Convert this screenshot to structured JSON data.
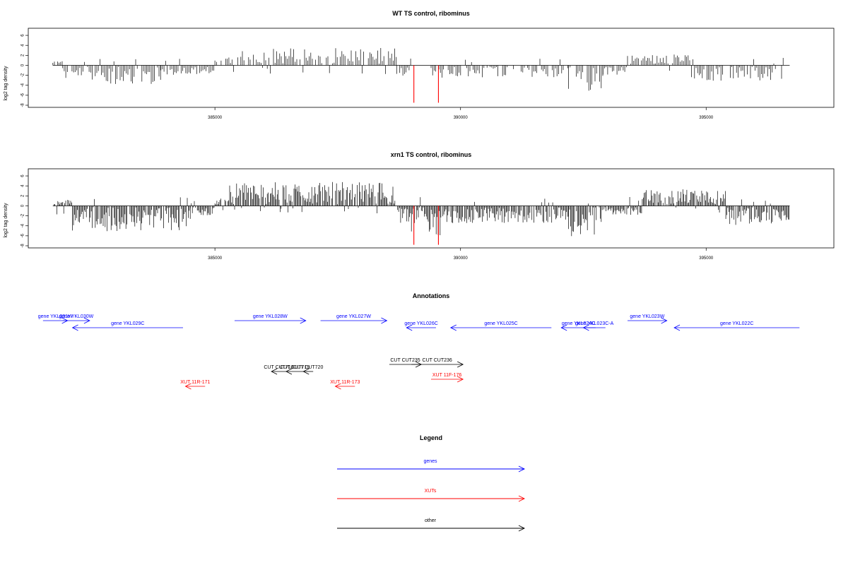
{
  "chart_data": [
    {
      "type": "bar",
      "title": "WT TS control, ribominus",
      "ylabel": "log2 tag density",
      "xlabel": "",
      "xlim": [
        381200,
        397600
      ],
      "ylim": [
        -8,
        7
      ],
      "xticks": [
        385000,
        390000,
        395000
      ],
      "xtick_labels": [
        "385000",
        "390000",
        "395000"
      ],
      "yticks": [
        -8,
        -6,
        -4,
        -2,
        0,
        2,
        4,
        6
      ],
      "ytick_labels": [
        "-8",
        "-6",
        "-4",
        "-2",
        "0",
        "2",
        "4",
        "6"
      ],
      "baseline_x": [
        381700,
        396700
      ],
      "grid": false,
      "segments": [
        {
          "x": [
            381700,
            381900
          ],
          "base": 0.4
        },
        {
          "x": [
            381900,
            382500
          ],
          "base": -1.5
        },
        {
          "x": [
            382500,
            383900
          ],
          "base": -2.6
        },
        {
          "x": [
            383900,
            385000
          ],
          "base": -1.0
        },
        {
          "x": [
            385000,
            385400
          ],
          "base": 0.8
        },
        {
          "x": [
            385400,
            388700
          ],
          "base": 2.0
        },
        {
          "x": [
            388700,
            389000
          ],
          "base": -1.2
        },
        {
          "x": [
            389400,
            392200
          ],
          "base": -1.4
        },
        {
          "x": [
            392200,
            392900
          ],
          "base": -3.0
        },
        {
          "x": [
            392900,
            393400
          ],
          "base": -1.0
        },
        {
          "x": [
            393400,
            394700
          ],
          "base": 1.2
        },
        {
          "x": [
            394700,
            396600
          ],
          "base": -1.8
        }
      ],
      "highlights": [
        {
          "x": 389050,
          "value": -7.5,
          "color": "#ff0000"
        },
        {
          "x": 389550,
          "value": -7.5,
          "color": "#ff0000"
        }
      ],
      "bar_color": "#000000"
    },
    {
      "type": "bar",
      "title": "xrn1 TS control, ribominus",
      "ylabel": "log2 tag density",
      "xlabel": "",
      "xlim": [
        381200,
        397600
      ],
      "ylim": [
        -8,
        7
      ],
      "xticks": [
        385000,
        390000,
        395000
      ],
      "xtick_labels": [
        "385000",
        "390000",
        "395000"
      ],
      "yticks": [
        -8,
        -6,
        -4,
        -2,
        0,
        2,
        4,
        6
      ],
      "ytick_labels": [
        "-8",
        "-6",
        "-4",
        "-2",
        "0",
        "2",
        "4",
        "6"
      ],
      "baseline_x": [
        381700,
        396700
      ],
      "grid": false,
      "segments": [
        {
          "x": [
            381700,
            382100
          ],
          "base": 0.6
        },
        {
          "x": [
            382100,
            384500
          ],
          "base": -3.0
        },
        {
          "x": [
            384500,
            385000
          ],
          "base": -1.0
        },
        {
          "x": [
            385000,
            385300
          ],
          "base": 0.8
        },
        {
          "x": [
            385300,
            388700
          ],
          "base": 2.8
        },
        {
          "x": [
            388700,
            389000
          ],
          "base": -2.0
        },
        {
          "x": [
            389000,
            389600
          ],
          "base": -3.5
        },
        {
          "x": [
            389600,
            392200
          ],
          "base": -2.0
        },
        {
          "x": [
            392200,
            392900
          ],
          "base": -3.6
        },
        {
          "x": [
            392900,
            393700
          ],
          "base": -1.0
        },
        {
          "x": [
            393700,
            395400
          ],
          "base": 1.9
        },
        {
          "x": [
            395400,
            396700
          ],
          "base": -2.2
        }
      ],
      "highlights": [
        {
          "x": 389050,
          "value": -7.8,
          "color": "#ff0000"
        },
        {
          "x": 389550,
          "value": -7.8,
          "color": "#ff0000"
        }
      ],
      "bar_color": "#000000"
    }
  ],
  "annotations": {
    "title": "Annotations",
    "colors": {
      "genes": "#0000ff",
      "xuts": "#ff0000",
      "other": "#000000"
    },
    "items": [
      {
        "label": "gene YKL031W",
        "start": 381500,
        "end": 382000,
        "row": 0,
        "kind": "genes"
      },
      {
        "label": "gene YKL030W",
        "start": 381900,
        "end": 382450,
        "row": 0,
        "kind": "genes"
      },
      {
        "label": "gene YKL029C",
        "start": 382100,
        "end": 384350,
        "row": 1,
        "kind": "genes"
      },
      {
        "label": "gene YKL028W",
        "start": 385400,
        "end": 386850,
        "row": 0,
        "kind": "genes"
      },
      {
        "label": "gene YKL027W",
        "start": 387150,
        "end": 388500,
        "row": 0,
        "kind": "genes"
      },
      {
        "label": "gene YKL026C",
        "start": 388900,
        "end": 389500,
        "row": 1,
        "kind": "genes"
      },
      {
        "label": "gene YKL025C",
        "start": 389800,
        "end": 391850,
        "row": 1,
        "kind": "genes"
      },
      {
        "label": "gene YKL024C",
        "start": 392050,
        "end": 392750,
        "row": 1,
        "kind": "genes"
      },
      {
        "label": "gene YKL023C-A",
        "start": 392500,
        "end": 392950,
        "row": 1,
        "kind": "genes"
      },
      {
        "label": "gene YKL023W",
        "start": 393400,
        "end": 394200,
        "row": 0,
        "kind": "genes"
      },
      {
        "label": "gene YKL022C",
        "start": 394350,
        "end": 396900,
        "row": 1,
        "kind": "genes"
      },
      {
        "label": "CUT CUT718",
        "start": 386150,
        "end": 386450,
        "row": 3,
        "kind": "other"
      },
      {
        "label": "CUT CUT719",
        "start": 386450,
        "end": 386800,
        "row": 3,
        "kind": "other"
      },
      {
        "label": "CUT CUT720",
        "start": 386800,
        "end": 387000,
        "row": 3,
        "kind": "other"
      },
      {
        "label": "CUT CUT235",
        "start": 388550,
        "end": 389200,
        "row": 2,
        "kind": "other"
      },
      {
        "label": "CUT CUT236",
        "start": 389000,
        "end": 390050,
        "row": 2,
        "kind": "other"
      },
      {
        "label": "XUT 11R-171",
        "start": 384400,
        "end": 384800,
        "row": 4,
        "kind": "xuts"
      },
      {
        "label": "XUT 11R-173",
        "start": 387450,
        "end": 387850,
        "row": 4,
        "kind": "xuts"
      },
      {
        "label": "XUT 11F-176",
        "start": 389400,
        "end": 390050,
        "row": 5,
        "kind": "xuts"
      }
    ]
  },
  "legend": {
    "title": "Legend",
    "entries": [
      {
        "label": "genes",
        "color": "#0000ff"
      },
      {
        "label": "XUTs",
        "color": "#ff0000"
      },
      {
        "label": "other",
        "color": "#000000"
      }
    ]
  }
}
